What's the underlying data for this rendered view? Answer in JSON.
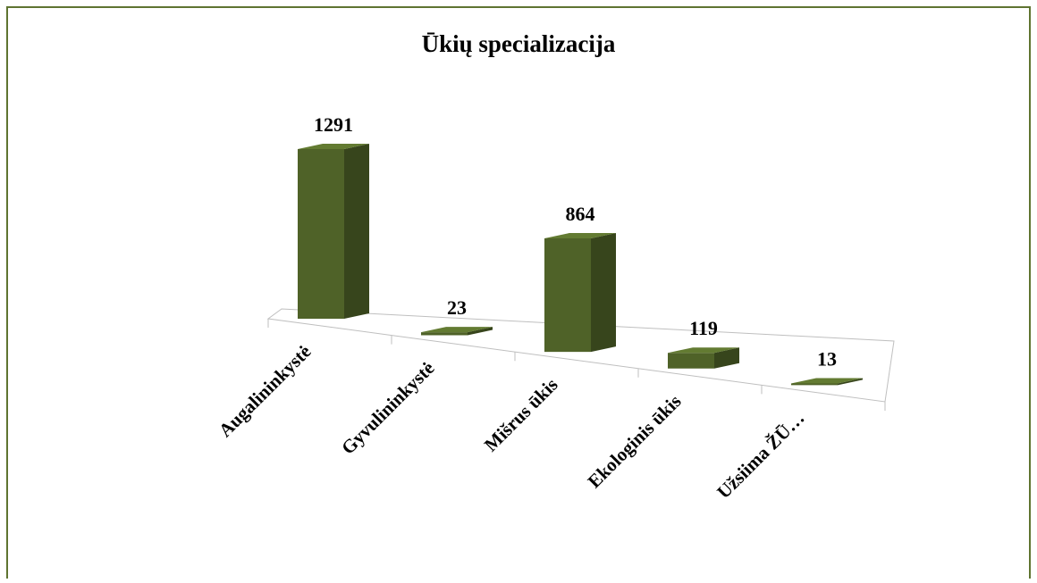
{
  "chart_data": {
    "type": "bar3d",
    "title": "Ūkių specializacija",
    "categories": [
      "Augalininkystė",
      "Gyvulininkystė",
      "Mišrus ūkis",
      "Ekologinis ūkis",
      "Užsiima ŽŪ…"
    ],
    "values": [
      1291,
      23,
      864,
      119,
      13
    ],
    "color": "#4f6228"
  }
}
